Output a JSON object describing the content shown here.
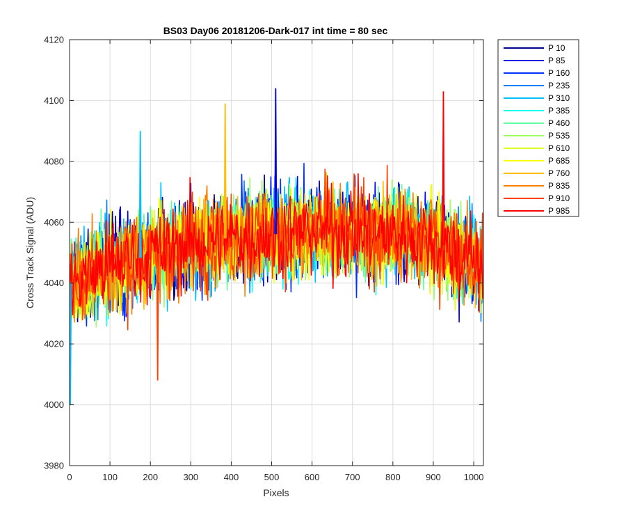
{
  "chart_data": {
    "type": "line",
    "title": "BS03 Day06 20181206-Dark-017 int time = 80 sec",
    "xlabel": "Pixels",
    "ylabel": "Cross Track Signal (ADU)",
    "xlim": [
      0,
      1024
    ],
    "ylim": [
      3980,
      4120
    ],
    "xticks": [
      0,
      100,
      200,
      300,
      400,
      500,
      600,
      700,
      800,
      900,
      1000
    ],
    "yticks": [
      3980,
      4000,
      4020,
      4040,
      4060,
      4080,
      4100,
      4120
    ],
    "grid": true,
    "legend_position": "outside-right",
    "series_profile": {
      "description_points_x": [
        0,
        100,
        200,
        300,
        400,
        500,
        600,
        700,
        800,
        900,
        1024
      ],
      "mean_level": [
        4040,
        4046,
        4049,
        4053,
        4055,
        4056,
        4057,
        4057,
        4056,
        4054,
        4046
      ],
      "spread_half_width": 13
    },
    "series": [
      {
        "name": "P 10",
        "color": "#00008F"
      },
      {
        "name": "P 85",
        "color": "#0000E0"
      },
      {
        "name": "P 160",
        "color": "#0030FF"
      },
      {
        "name": "P 235",
        "color": "#0080FF"
      },
      {
        "name": "P 310",
        "color": "#00BFFF"
      },
      {
        "name": "P 385",
        "color": "#10FFEF"
      },
      {
        "name": "P 460",
        "color": "#60FFA0"
      },
      {
        "name": "P 535",
        "color": "#9FFF60"
      },
      {
        "name": "P 610",
        "color": "#DFFF20"
      },
      {
        "name": "P 685",
        "color": "#FFFF00"
      },
      {
        "name": "P 760",
        "color": "#FFBF00"
      },
      {
        "name": "P 835",
        "color": "#FF8000"
      },
      {
        "name": "P 910",
        "color": "#FF4000"
      },
      {
        "name": "P 985",
        "color": "#FF0000"
      }
    ],
    "notable_points": [
      {
        "x": 2,
        "y": 4000,
        "series": "P 310"
      },
      {
        "x": 510,
        "y": 4104,
        "series": "P 85"
      },
      {
        "x": 925,
        "y": 4103,
        "series": "P 985"
      },
      {
        "x": 385,
        "y": 4099,
        "series": "P 760"
      },
      {
        "x": 218,
        "y": 4008,
        "series": "P 910"
      },
      {
        "x": 175,
        "y": 4090,
        "series": "P 310"
      }
    ]
  }
}
